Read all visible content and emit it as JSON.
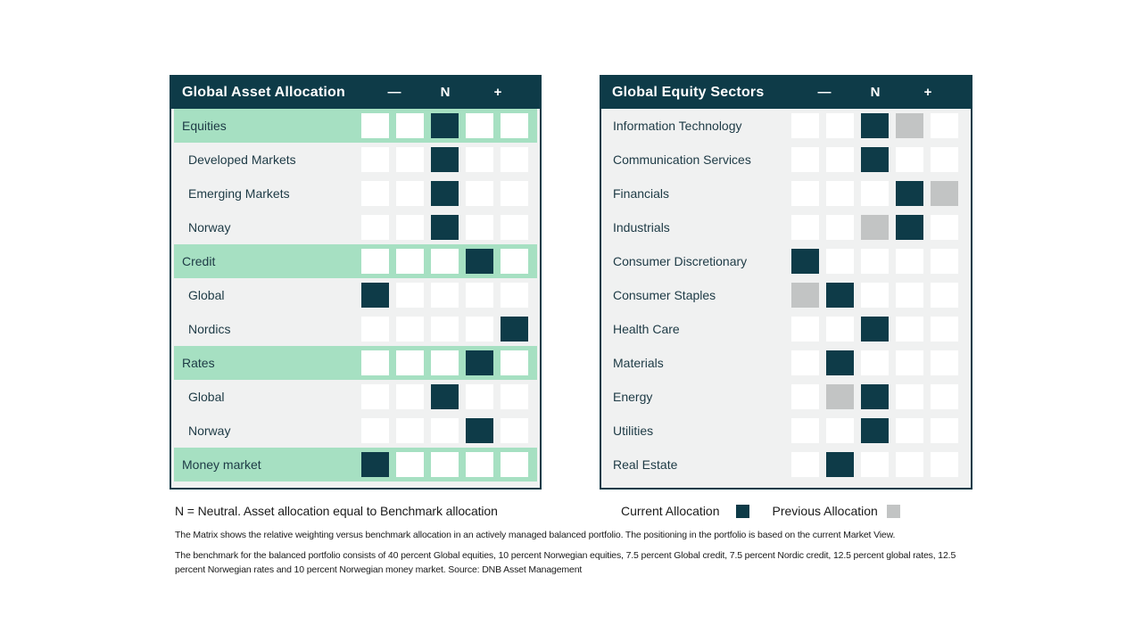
{
  "colors": {
    "dark_teal": "#0e3b48",
    "mint_green": "#a6e0c2",
    "panel_background": "#f0f1f1",
    "previous_gray": "#c2c4c4",
    "cell_white": "#ffffff"
  },
  "chart_data": [
    {
      "type": "heatmap",
      "title": "Global Asset Allocation",
      "n_columns": 5,
      "columns": [
        "—",
        "N",
        "+"
      ],
      "legend_position": "bottom",
      "rows": [
        {
          "label": "Equities",
          "category": true,
          "current": 3
        },
        {
          "label": "Developed Markets",
          "category": false,
          "current": 3
        },
        {
          "label": "Emerging Markets",
          "category": false,
          "current": 3
        },
        {
          "label": "Norway",
          "category": false,
          "current": 3
        },
        {
          "label": "Credit",
          "category": true,
          "current": 4
        },
        {
          "label": "Global",
          "category": false,
          "current": 1
        },
        {
          "label": "Nordics",
          "category": false,
          "current": 5
        },
        {
          "label": "Rates",
          "category": true,
          "current": 4
        },
        {
          "label": "Global",
          "category": false,
          "current": 3
        },
        {
          "label": "Norway",
          "category": false,
          "current": 4
        },
        {
          "label": "Money market",
          "category": true,
          "current": 1
        }
      ]
    },
    {
      "type": "heatmap",
      "title": "Global Equity Sectors",
      "n_columns": 5,
      "columns": [
        "—",
        "N",
        "+"
      ],
      "legend_position": "bottom",
      "rows": [
        {
          "label": "Information Technology",
          "current": 3,
          "previous": 4
        },
        {
          "label": "Communication Services",
          "current": 3
        },
        {
          "label": "Financials",
          "current": 4,
          "previous": 5
        },
        {
          "label": "Industrials",
          "current": 4,
          "previous": 3
        },
        {
          "label": "Consumer Discretionary",
          "current": 1
        },
        {
          "label": "Consumer Staples",
          "current": 2,
          "previous": 1
        },
        {
          "label": "Health Care",
          "current": 3
        },
        {
          "label": "Materials",
          "current": 2
        },
        {
          "label": "Energy",
          "current": 3,
          "previous": 2
        },
        {
          "label": "Utilities",
          "current": 3
        },
        {
          "label": "Real Estate",
          "current": 2
        }
      ]
    }
  ],
  "caption": "N = Neutral. Asset allocation equal to Benchmark allocation",
  "legend": {
    "current_label": "Current Allocation",
    "previous_label": "Previous Allocation"
  },
  "footnotes": [
    "The Matrix shows the relative weighting versus benchmark allocation in an actively managed balanced portfolio. The positioning in the portfolio is based on the current Market View.",
    "The benchmark for the balanced portfolio consists of 40 percent Global equities, 10 percent Norwegian equities, 7.5 percent Global credit, 7.5 percent Nordic credit, 12.5 percent global rates, 12.5 percent Norwegian rates and 10 percent Norwegian money market. Source: DNB Asset Management"
  ]
}
